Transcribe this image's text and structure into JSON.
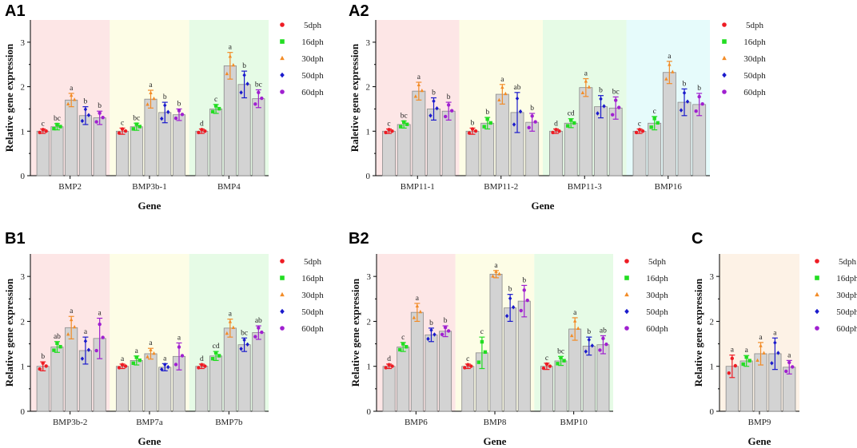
{
  "legend": {
    "entries": [
      "5dph",
      "16dph",
      "30dph",
      "50dph",
      "60dph"
    ],
    "colors": [
      "#ee1c24",
      "#22dd22",
      "#f28c28",
      "#1a1acc",
      "#a020d0"
    ]
  },
  "style": {
    "bar_fill": "#d3d3d3",
    "bar_stroke": "#8a8a8a",
    "bands": [
      "#fde6e6",
      "#fdfde6",
      "#e6fbe6",
      "#e6fbfb"
    ],
    "band_c": "#fdf2e6"
  },
  "chart_data": [
    {
      "id": "A1",
      "panel_label": "A1",
      "type": "bar",
      "xlabel": "Gene",
      "ylabel": "Relative gene expression",
      "ylim": [
        0,
        3.5
      ],
      "yticks": [
        "0",
        "1",
        "2",
        "3"
      ],
      "categories": [
        "BMP2",
        "BMP3b-1",
        "BMP4"
      ],
      "series_names": [
        "5dph",
        "16dph",
        "30dph",
        "50dph",
        "60dph"
      ],
      "values": [
        [
          1.0,
          1.1,
          1.7,
          1.35,
          1.3
        ],
        [
          1.0,
          1.1,
          1.72,
          1.42,
          1.37
        ],
        [
          1.0,
          1.5,
          2.47,
          2.05,
          1.73
        ]
      ],
      "errors": [
        [
          0.05,
          0.07,
          0.15,
          0.2,
          0.15
        ],
        [
          0.07,
          0.08,
          0.2,
          0.23,
          0.13
        ],
        [
          0.05,
          0.1,
          0.3,
          0.3,
          0.2
        ]
      ],
      "significance": [
        [
          "c",
          "bc",
          "a",
          "b",
          "b"
        ],
        [
          "c",
          "bc",
          "a",
          "b",
          "b"
        ],
        [
          "d",
          "c",
          "a",
          "b",
          "bc"
        ]
      ]
    },
    {
      "id": "A2",
      "panel_label": "A2",
      "type": "bar",
      "xlabel": "Gene",
      "ylabel": "Raletive gene expression",
      "ylim": [
        0,
        3.5
      ],
      "yticks": [
        "0",
        "1",
        "2",
        "3"
      ],
      "categories": [
        "BMP11-1",
        "BMP11-2",
        "BMP11-3",
        "BMP16"
      ],
      "series_names": [
        "5dph",
        "16dph",
        "30dph",
        "50dph",
        "60dph"
      ],
      "values": [
        [
          1.0,
          1.15,
          1.9,
          1.5,
          1.45
        ],
        [
          1.0,
          1.18,
          1.83,
          1.42,
          1.2
        ],
        [
          1.0,
          1.18,
          1.98,
          1.55,
          1.52
        ],
        [
          1.0,
          1.18,
          2.32,
          1.65,
          1.6
        ]
      ],
      "errors": [
        [
          0.05,
          0.08,
          0.2,
          0.25,
          0.2
        ],
        [
          0.07,
          0.13,
          0.22,
          0.45,
          0.2
        ],
        [
          0.05,
          0.1,
          0.2,
          0.25,
          0.25
        ],
        [
          0.05,
          0.15,
          0.25,
          0.3,
          0.25
        ]
      ],
      "significance": [
        [
          "c",
          "bc",
          "a",
          "b",
          "b"
        ],
        [
          "b",
          "b",
          "a",
          "ab",
          "b"
        ],
        [
          "d",
          "cd",
          "a",
          "b",
          "bc"
        ],
        [
          "c",
          "c",
          "a",
          "b",
          "b"
        ]
      ]
    },
    {
      "id": "B1",
      "panel_label": "B1",
      "type": "bar",
      "xlabel": "Gene",
      "ylabel": "Relative gene expression",
      "ylim": [
        0,
        3.5
      ],
      "yticks": [
        "0",
        "1",
        "2",
        "3"
      ],
      "categories": [
        "BMP3b-2",
        "BMP7a",
        "BMP7b"
      ],
      "series_names": [
        "5dph",
        "16dph",
        "30dph",
        "50dph",
        "60dph"
      ],
      "values": [
        [
          1.0,
          1.43,
          1.86,
          1.35,
          1.62
        ],
        [
          1.0,
          1.13,
          1.28,
          0.98,
          1.22
        ],
        [
          1.0,
          1.23,
          1.85,
          1.48,
          1.75
        ]
      ],
      "errors": [
        [
          0.1,
          0.12,
          0.25,
          0.3,
          0.45
        ],
        [
          0.05,
          0.1,
          0.12,
          0.08,
          0.3
        ],
        [
          0.05,
          0.1,
          0.2,
          0.15,
          0.15
        ]
      ],
      "significance": [
        [
          "b",
          "ab",
          "a",
          "a",
          "a"
        ],
        [
          "a",
          "a",
          "a",
          "a",
          "a"
        ],
        [
          "d",
          "cd",
          "a",
          "bc",
          "ab"
        ]
      ]
    },
    {
      "id": "B2",
      "panel_label": "B2",
      "type": "bar",
      "xlabel": "Gene",
      "ylabel": "Relative gene expression",
      "ylim": [
        0,
        3.5
      ],
      "yticks": [
        "0",
        "1",
        "2",
        "3"
      ],
      "categories": [
        "BMP6",
        "BMP8",
        "BMP10"
      ],
      "series_names": [
        "5dph",
        "16dph",
        "30dph",
        "50dph",
        "60dph"
      ],
      "values": [
        [
          1.0,
          1.43,
          2.2,
          1.7,
          1.78
        ],
        [
          1.0,
          1.3,
          3.05,
          2.3,
          2.45
        ],
        [
          1.0,
          1.12,
          1.83,
          1.45,
          1.48
        ]
      ],
      "errors": [
        [
          0.05,
          0.1,
          0.2,
          0.15,
          0.12
        ],
        [
          0.05,
          0.35,
          0.08,
          0.3,
          0.35
        ],
        [
          0.07,
          0.1,
          0.25,
          0.2,
          0.2
        ]
      ],
      "significance": [
        [
          "d",
          "c",
          "a",
          "b",
          "b"
        ],
        [
          "c",
          "c",
          "a",
          "b",
          "b"
        ],
        [
          "c",
          "bc",
          "a",
          "b",
          "ab"
        ]
      ]
    },
    {
      "id": "C",
      "panel_label": "C",
      "type": "bar",
      "xlabel": "Gene",
      "ylabel": "Relative gene expression",
      "ylim": [
        0,
        3.5
      ],
      "yticks": [
        "0",
        "1",
        "2",
        "3"
      ],
      "categories": [
        "BMP9"
      ],
      "series_names": [
        "5dph",
        "16dph",
        "30dph",
        "50dph",
        "60dph"
      ],
      "values": [
        [
          1.0,
          1.12,
          1.28,
          1.28,
          0.98
        ]
      ],
      "errors": [
        [
          0.25,
          0.12,
          0.25,
          0.35,
          0.15
        ]
      ],
      "significance": [
        [
          "a",
          "a",
          "a",
          "a",
          "a"
        ]
      ]
    }
  ]
}
